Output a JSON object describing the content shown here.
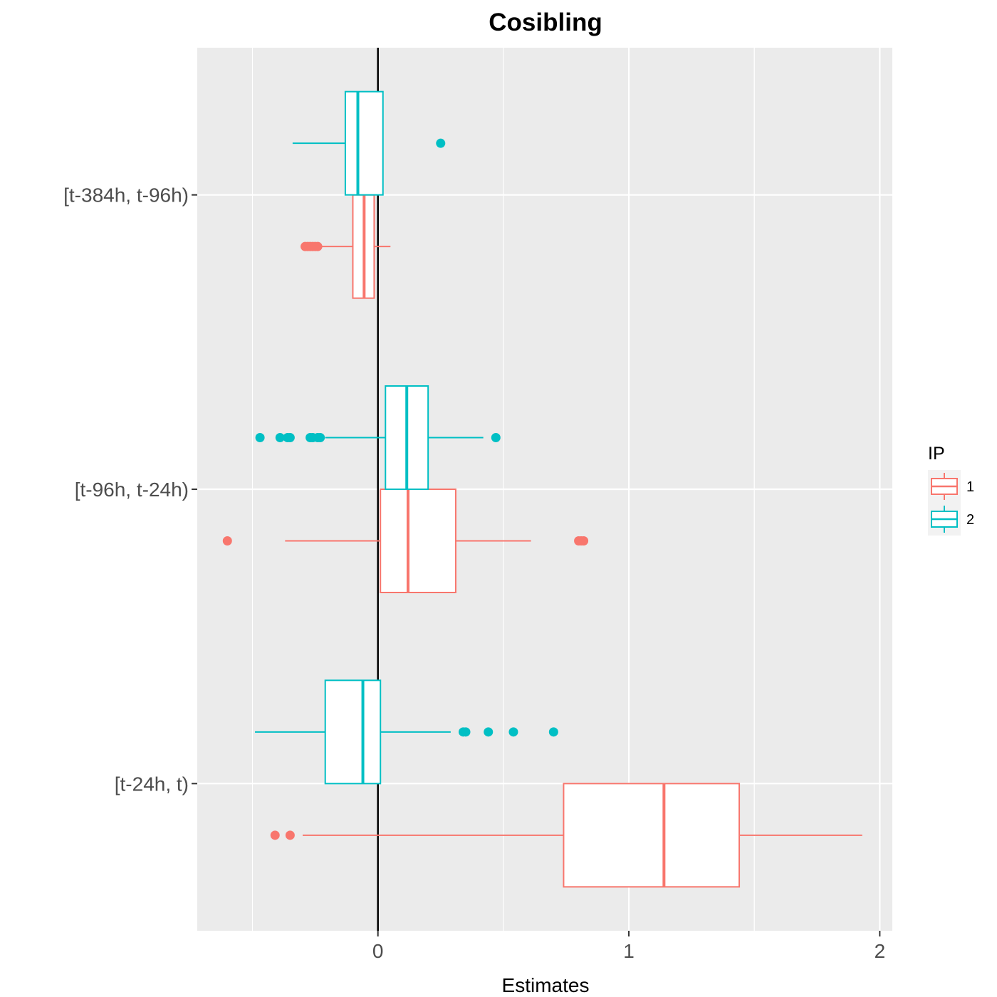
{
  "chart_data": {
    "type": "boxplot",
    "orientation": "horizontal",
    "title": "Cosibling",
    "xlabel": "Estimates",
    "ylabel": "",
    "xlim": [
      -0.72,
      2.05
    ],
    "x_ticks": [
      0,
      1,
      2
    ],
    "x_tick_labels": [
      "0",
      "1",
      "2"
    ],
    "categories": [
      "[t-384h, t-96h)",
      "[t-96h, t-24h)",
      "[t-24h, t)"
    ],
    "reference_line": {
      "x": 0,
      "color": "#000000"
    },
    "grid": true,
    "legend": {
      "title": "IP",
      "position": "right",
      "entries": [
        {
          "label": "1",
          "color": "#F8766D"
        },
        {
          "label": "2",
          "color": "#00BFC4"
        }
      ]
    },
    "series": [
      {
        "name": "1",
        "color": "#F8766D",
        "boxes": [
          {
            "category": "[t-384h, t-96h)",
            "q1": -0.1,
            "median": -0.055,
            "q3": -0.015,
            "whisker_low": -0.23,
            "whisker_high": 0.05,
            "outliers": [
              -0.29,
              -0.28,
              -0.27,
              -0.26,
              -0.25,
              -0.24
            ]
          },
          {
            "category": "[t-96h, t-24h)",
            "q1": 0.01,
            "median": 0.12,
            "q3": 0.31,
            "whisker_low": -0.37,
            "whisker_high": 0.61,
            "outliers": [
              -0.6,
              0.8,
              0.81,
              0.82
            ]
          },
          {
            "category": "[t-24h, t)",
            "q1": 0.74,
            "median": 1.14,
            "q3": 1.44,
            "whisker_low": -0.3,
            "whisker_high": 1.93,
            "outliers": [
              -0.41,
              -0.35
            ]
          }
        ]
      },
      {
        "name": "2",
        "color": "#00BFC4",
        "boxes": [
          {
            "category": "[t-384h, t-96h)",
            "q1": -0.13,
            "median": -0.08,
            "q3": 0.02,
            "whisker_low": -0.34,
            "whisker_high": 0.02,
            "outliers": [
              0.25
            ]
          },
          {
            "category": "[t-96h, t-24h)",
            "q1": 0.03,
            "median": 0.115,
            "q3": 0.2,
            "whisker_low": -0.21,
            "whisker_high": 0.42,
            "outliers": [
              -0.47,
              -0.39,
              -0.36,
              -0.35,
              -0.27,
              -0.26,
              -0.24,
              -0.23,
              0.47
            ]
          },
          {
            "category": "[t-24h, t)",
            "q1": -0.21,
            "median": -0.06,
            "q3": 0.01,
            "whisker_low": -0.49,
            "whisker_high": 0.29,
            "outliers": [
              0.34,
              0.35,
              0.44,
              0.54,
              0.7
            ]
          }
        ]
      }
    ]
  }
}
